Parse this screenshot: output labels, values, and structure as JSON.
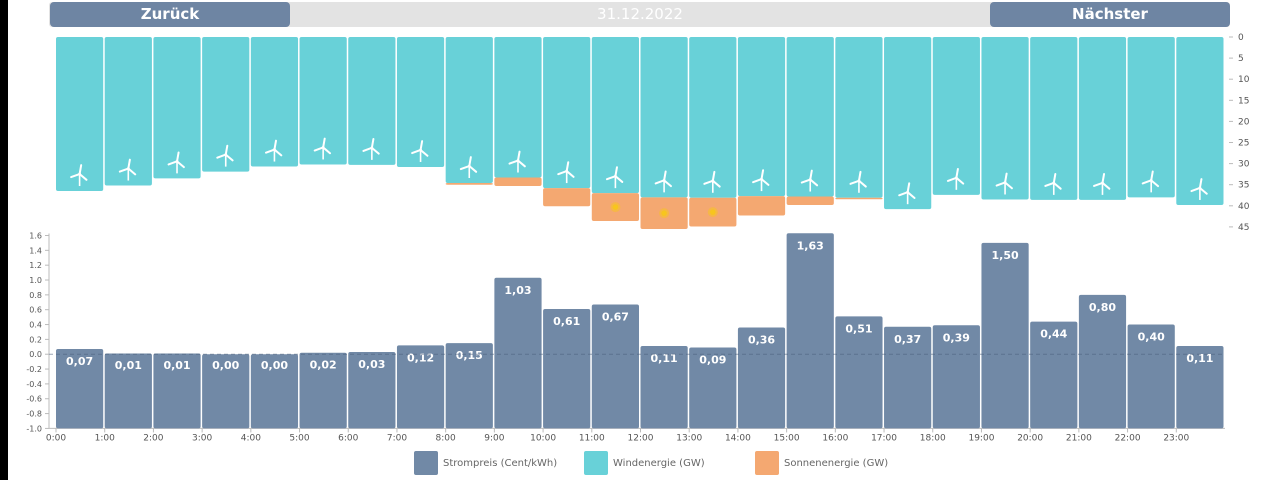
{
  "nav": {
    "back_label": "Zurück",
    "date": "31.12.2022",
    "next_label": "Nächster"
  },
  "colors": {
    "price": "#7189a6",
    "wind": "#68d1d8",
    "solar": "#f4a871",
    "sun_dot": "#f7c51e"
  },
  "legend": [
    {
      "label": "Strompreis (Cent/kWh)",
      "color": "#7189a6"
    },
    {
      "label": "Windenergie (GW)",
      "color": "#68d1d8"
    },
    {
      "label": "Sonnenenergie (GW)",
      "color": "#f4a871"
    }
  ],
  "chart_data": [
    {
      "type": "bar",
      "name": "energy",
      "categories": [
        "0:00",
        "1:00",
        "2:00",
        "3:00",
        "4:00",
        "5:00",
        "6:00",
        "7:00",
        "8:00",
        "9:00",
        "10:00",
        "11:00",
        "12:00",
        "13:00",
        "14:00",
        "15:00",
        "16:00",
        "17:00",
        "18:00",
        "19:00",
        "20:00",
        "21:00",
        "22:00",
        "23:00"
      ],
      "series": [
        {
          "name": "Windenergie (GW)",
          "values": [
            36.5,
            35.2,
            33.5,
            31.9,
            30.7,
            30.2,
            30.3,
            30.8,
            34.6,
            33.3,
            35.8,
            37.0,
            38.0,
            38.1,
            37.7,
            37.8,
            38.1,
            40.8,
            37.4,
            38.5,
            38.6,
            38.6,
            38.0,
            39.8
          ]
        },
        {
          "name": "Sonnenenergie (GW)",
          "values": [
            0,
            0,
            0,
            0,
            0,
            0,
            0,
            0,
            0.4,
            2.0,
            4.3,
            6.6,
            7.5,
            6.8,
            4.6,
            2.0,
            0.2,
            0,
            0,
            0,
            0,
            0,
            0,
            0
          ]
        }
      ],
      "yticks": [
        0,
        5,
        10,
        15,
        20,
        25,
        30,
        35,
        40,
        45
      ],
      "ylim": [
        0,
        45
      ],
      "y_inverted": true,
      "y_axis_position": "right"
    },
    {
      "type": "bar",
      "name": "price",
      "categories": [
        "0:00",
        "1:00",
        "2:00",
        "3:00",
        "4:00",
        "5:00",
        "6:00",
        "7:00",
        "8:00",
        "9:00",
        "10:00",
        "11:00",
        "12:00",
        "13:00",
        "14:00",
        "15:00",
        "16:00",
        "17:00",
        "18:00",
        "19:00",
        "20:00",
        "21:00",
        "22:00",
        "23:00"
      ],
      "series": [
        {
          "name": "Strompreis (Cent/kWh)",
          "values": [
            0.07,
            0.01,
            0.01,
            0.0,
            0.0,
            0.02,
            0.03,
            0.12,
            0.15,
            1.03,
            0.61,
            0.67,
            0.11,
            0.09,
            0.36,
            1.63,
            0.51,
            0.37,
            0.39,
            1.5,
            0.44,
            0.8,
            0.4,
            0.11
          ]
        }
      ],
      "labels": [
        "0,07",
        "0,01",
        "0,01",
        "0,00",
        "0,00",
        "0,02",
        "0,03",
        "0,12",
        "0,15",
        "1,03",
        "0,61",
        "0,67",
        "0,11",
        "0,09",
        "0,36",
        "1,63",
        "0,51",
        "0,37",
        "0,39",
        "1,50",
        "0,44",
        "0,80",
        "0,40",
        "0,11"
      ],
      "xticks": [
        "0:00",
        "1:00",
        "2:00",
        "3:00",
        "4:00",
        "5:00",
        "6:00",
        "7:00",
        "8:00",
        "9:00",
        "10:00",
        "11:00",
        "12:00",
        "13:00",
        "14:00",
        "15:00",
        "16:00",
        "17:00",
        "18:00",
        "19:00",
        "20:00",
        "21:00",
        "22:00",
        "23:00"
      ],
      "yticks": [
        "1.6",
        "1.4",
        "1.2",
        "1.0",
        "0.8",
        "0.6",
        "0.4",
        "0.2",
        "0.0",
        "-0.2",
        "-0.4",
        "-0.6",
        "-0.8",
        "-1.0"
      ],
      "ylim": [
        -1.0,
        1.6
      ],
      "zero_line": "dashed"
    }
  ]
}
